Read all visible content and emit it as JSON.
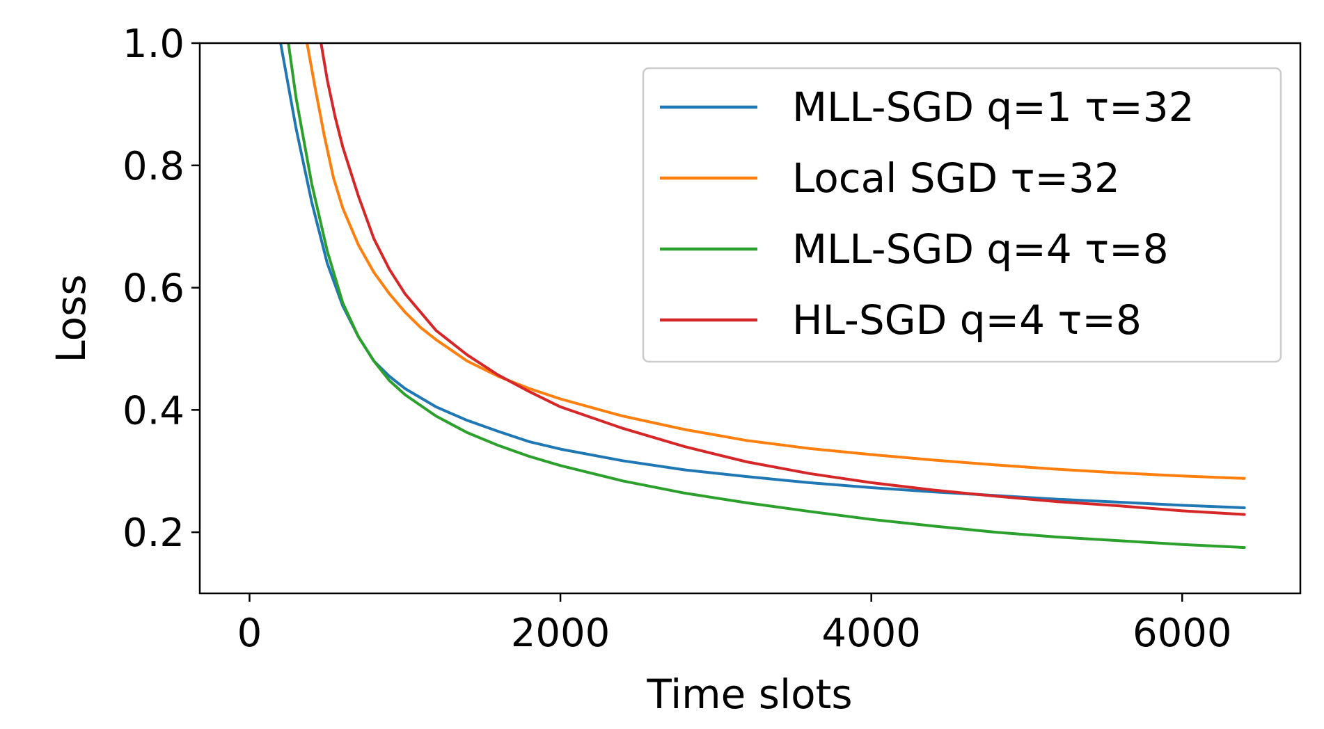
{
  "chart_data": {
    "type": "line",
    "title": "",
    "xlabel": "Time slots",
    "ylabel": "Loss",
    "xlim": [
      -320,
      6760
    ],
    "ylim": [
      0.1,
      1.0
    ],
    "xticks": [
      0,
      2000,
      4000,
      6000
    ],
    "xtick_labels": [
      "0",
      "2000",
      "4000",
      "6000"
    ],
    "yticks": [
      0.2,
      0.4,
      0.6,
      0.8,
      1.0
    ],
    "ytick_labels": [
      "0.2",
      "0.4",
      "0.6",
      "0.8",
      "1.0"
    ],
    "grid": false,
    "legend_position": "top-right",
    "series": [
      {
        "name": "MLL-SGD q=1 τ=32",
        "color": "#1f77b4",
        "x": [
          200,
          300,
          400,
          500,
          600,
          700,
          800,
          900,
          1000,
          1200,
          1400,
          1600,
          1800,
          2000,
          2400,
          2800,
          3200,
          3600,
          4000,
          4400,
          4800,
          5200,
          5600,
          6000,
          6400
        ],
        "y": [
          1.0,
          0.86,
          0.74,
          0.64,
          0.57,
          0.52,
          0.48,
          0.455,
          0.435,
          0.405,
          0.383,
          0.365,
          0.348,
          0.336,
          0.317,
          0.302,
          0.291,
          0.281,
          0.273,
          0.266,
          0.26,
          0.254,
          0.249,
          0.244,
          0.24
        ]
      },
      {
        "name": "Local SGD τ=32",
        "color": "#ff7f0e",
        "x": [
          370,
          420,
          480,
          540,
          600,
          700,
          800,
          900,
          1000,
          1100,
          1200,
          1400,
          1600,
          1800,
          2000,
          2400,
          2800,
          3200,
          3600,
          4000,
          4400,
          4800,
          5200,
          5600,
          6000,
          6400
        ],
        "y": [
          1.0,
          0.93,
          0.85,
          0.78,
          0.73,
          0.67,
          0.625,
          0.59,
          0.56,
          0.535,
          0.515,
          0.48,
          0.455,
          0.435,
          0.418,
          0.39,
          0.368,
          0.35,
          0.337,
          0.327,
          0.318,
          0.31,
          0.303,
          0.297,
          0.292,
          0.288
        ]
      },
      {
        "name": "MLL-SGD q=4 τ=8",
        "color": "#2ca02c",
        "x": [
          250,
          300,
          400,
          500,
          600,
          700,
          800,
          900,
          1000,
          1200,
          1400,
          1600,
          1800,
          2000,
          2400,
          2800,
          3200,
          3600,
          4000,
          4400,
          4800,
          5200,
          5600,
          6000,
          6400
        ],
        "y": [
          1.0,
          0.91,
          0.77,
          0.66,
          0.575,
          0.52,
          0.48,
          0.448,
          0.425,
          0.39,
          0.363,
          0.342,
          0.324,
          0.309,
          0.284,
          0.264,
          0.248,
          0.234,
          0.221,
          0.21,
          0.2,
          0.192,
          0.186,
          0.18,
          0.175
        ]
      },
      {
        "name": "HL-SGD q=4 τ=8",
        "color": "#d62728",
        "x": [
          460,
          500,
          550,
          600,
          700,
          800,
          900,
          1000,
          1100,
          1200,
          1400,
          1600,
          1800,
          2000,
          2400,
          2800,
          3200,
          3600,
          4000,
          4400,
          4800,
          5200,
          5600,
          6000,
          6400
        ],
        "y": [
          1.0,
          0.94,
          0.88,
          0.83,
          0.75,
          0.68,
          0.63,
          0.59,
          0.56,
          0.53,
          0.49,
          0.457,
          0.43,
          0.405,
          0.37,
          0.34,
          0.315,
          0.296,
          0.281,
          0.269,
          0.259,
          0.25,
          0.243,
          0.235,
          0.229
        ]
      }
    ]
  }
}
